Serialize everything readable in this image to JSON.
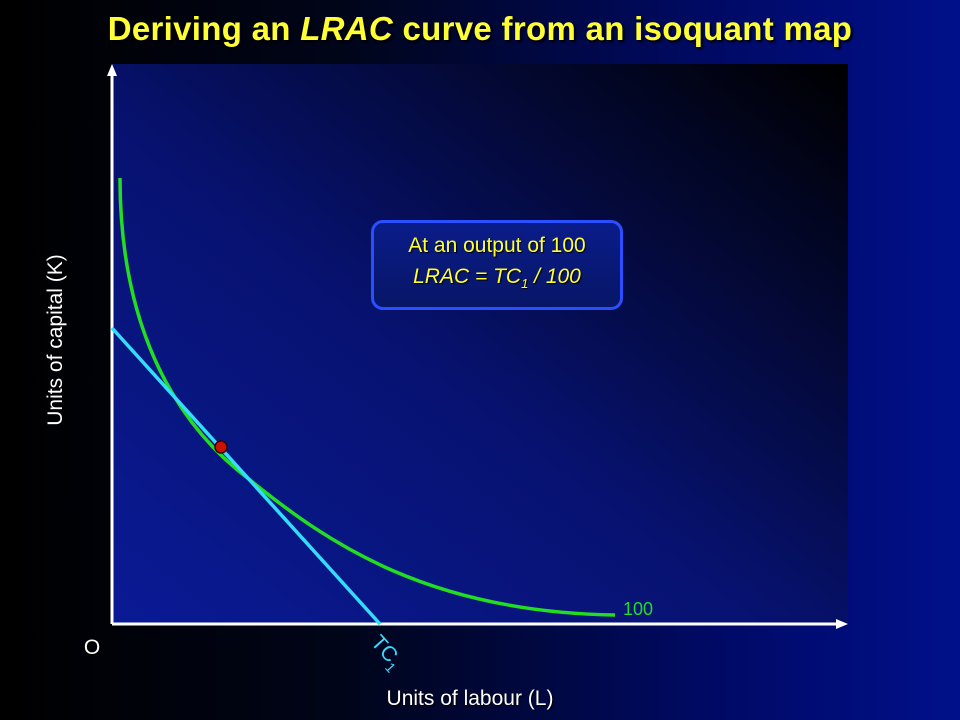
{
  "title": {
    "prefix": "Deriving an ",
    "emphasis": "LRAC",
    "suffix": " curve from an isoquant map"
  },
  "axes": {
    "y_label": "Units of capital (K)",
    "x_label": "Units of labour (L)",
    "origin_label": "O"
  },
  "isoquant": {
    "label": "100",
    "color": "#22dd22"
  },
  "isocost": {
    "label_main": "TC",
    "label_sub": "1",
    "color": "#33ddff"
  },
  "tangency_point": {
    "color": "#cc1100"
  },
  "callout": {
    "line1": "At an output of 100",
    "line2_main": "LRAC = TC",
    "line2_sub": "1",
    "line2_suffix": " / 100"
  },
  "colors": {
    "title": "#ffff33",
    "plot_background": "#0a1a90",
    "axis": "#ffffff",
    "callout_border": "#2a4fff"
  }
}
